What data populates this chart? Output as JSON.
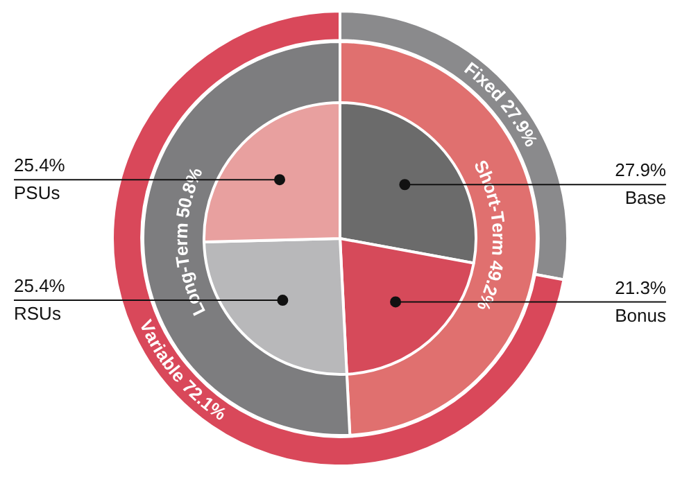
{
  "chart_data": [
    {
      "type": "donut",
      "categories": [
        "Fixed",
        "Variable"
      ],
      "values": [
        27.9,
        72.1
      ],
      "value_labels": [
        "27.9%",
        "72.1%"
      ],
      "colors": [
        "#8a8a8c",
        "#d9485a"
      ]
    },
    {
      "type": "donut",
      "categories": [
        "Short-Term",
        "Long-Term"
      ],
      "values": [
        49.2,
        50.8
      ],
      "value_labels": [
        "49.2%",
        "50.8%"
      ],
      "colors": [
        "#e0706f",
        "#7d7d7f"
      ]
    },
    {
      "type": "pie",
      "categories": [
        "Base",
        "Bonus",
        "RSUs",
        "PSUs"
      ],
      "values": [
        27.9,
        21.3,
        25.4,
        25.4
      ],
      "value_labels": [
        "27.9%",
        "21.3%",
        "25.4%",
        "25.4%"
      ],
      "colors": [
        "#6b6b6b",
        "#d64a5a",
        "#b8b8ba",
        "#e8a09f"
      ]
    }
  ]
}
